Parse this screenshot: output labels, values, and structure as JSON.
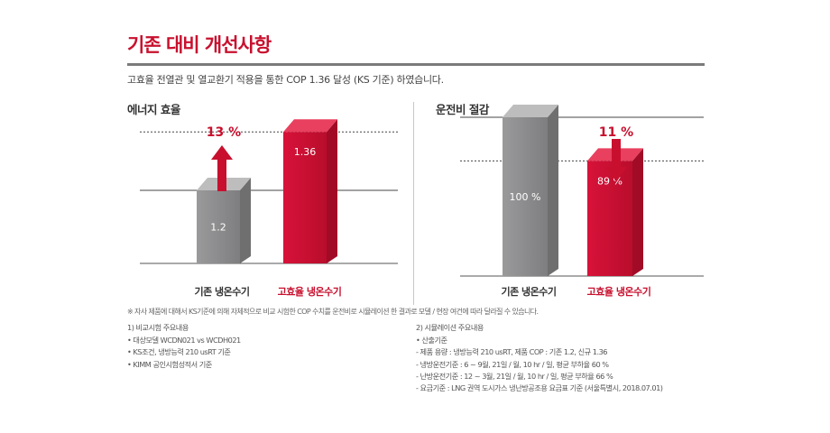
{
  "page": {
    "title": "기존 대비 개선사항",
    "subtitle": "고효율 전열관 및 열교환기 적용을 통한 COP 1.36 달성 (KS 기준) 하였습니다."
  },
  "colors": {
    "accent": "#c8102e",
    "gray_bar": "#8e8e8f",
    "red_bar": "#c8102e",
    "rule": "#7b7b7b"
  },
  "chart_data": [
    {
      "type": "bar",
      "title": "에너지 효율",
      "categories": [
        "기존 냉온수기",
        "고효율 냉온수기"
      ],
      "values": [
        1.2,
        1.36
      ],
      "value_labels": [
        "1.2",
        "1.36"
      ],
      "change_label": "13 %",
      "change_direction": "up",
      "ylim": [
        1.0,
        1.4
      ],
      "gridlines": [
        1.2,
        1.36
      ]
    },
    {
      "type": "bar",
      "title": "운전비 절감",
      "categories": [
        "기존 냉온수기",
        "고효율 냉온수기"
      ],
      "values": [
        100,
        89
      ],
      "value_labels": [
        "100 %",
        "89 %"
      ],
      "change_label": "11 %",
      "change_direction": "down",
      "ylim": [
        60,
        100
      ],
      "gridlines": [
        89,
        100
      ]
    }
  ],
  "footnote": "※ 자사 제품에 대해서 KS기준에 의해 자체적으로 비교 시험한 COP 수치를 운전비로 시뮬레이션 한 결과로 모델 / 현장 여건에 따라 달라질 수 있습니다.",
  "notes_left": {
    "heading": "1) 비교시험 주요내용",
    "items": [
      "• 대상모델 WCDN021 vs WCDH021",
      "• KS조건, 냉방능력 210 usRT 기준",
      "• KIMM 공인시험성적서 기준"
    ]
  },
  "notes_right": {
    "heading": "2) 시뮬레이션 주요내용",
    "items": [
      "• 산출기준",
      "  - 제품 용량 : 냉방능력 210 usRT, 제품 COP : 기존 1.2, 신규 1.36",
      "  - 냉방운전기준 : 6 ~ 9월, 21일 / 월, 10 hr / 일, 평균 부하율 60 %",
      "  - 난방운전기준 : 12 ~ 3월, 21일 / 월, 10 hr / 일, 평균 부하율 66 %",
      "  - 요금기준 : LNG 권역 도시가스 냉난방공조용 요금표 기준 (서울특별시, 2018.07.01)"
    ]
  }
}
